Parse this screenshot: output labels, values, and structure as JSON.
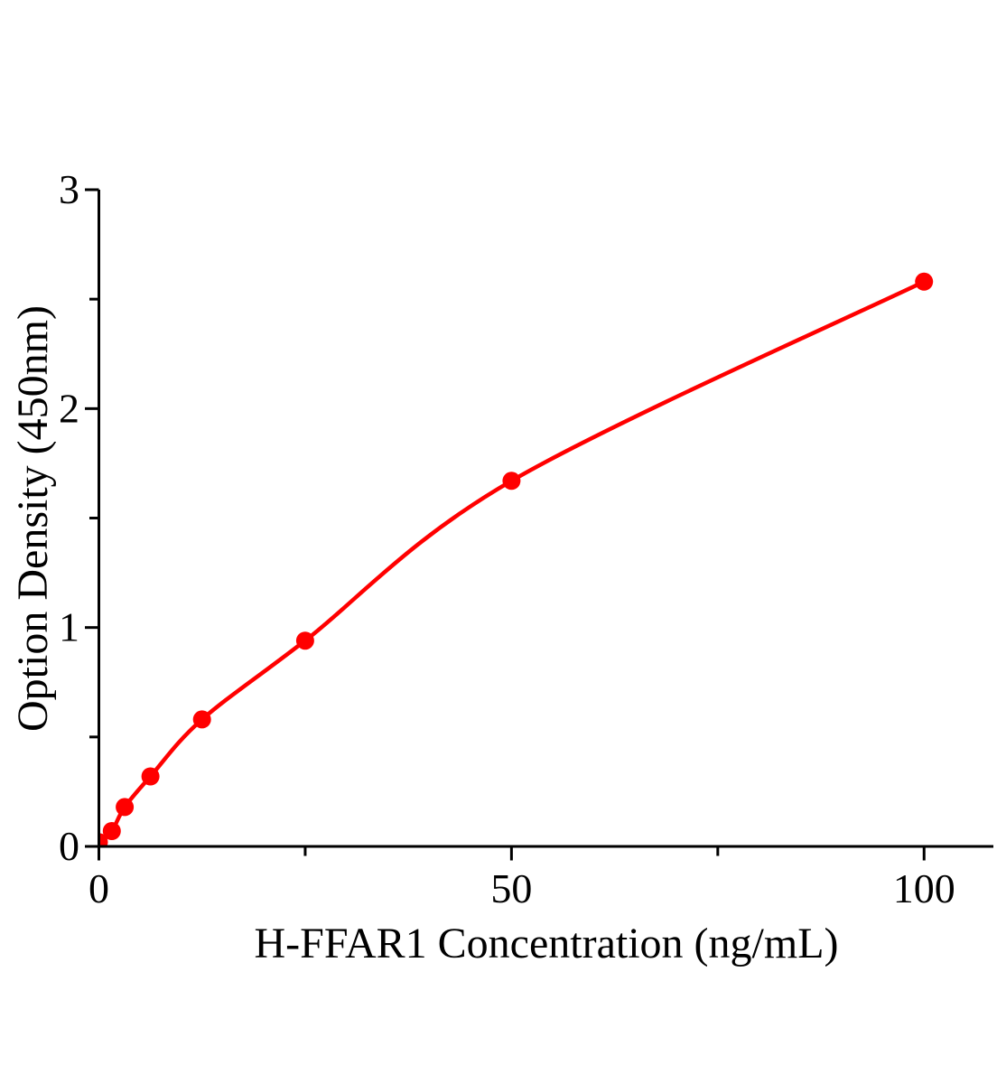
{
  "chart_data": {
    "type": "scatter",
    "title": "",
    "xlabel": "H-FFAR1 Concentration (ng/mL)",
    "ylabel": "Option Density (450nm)",
    "x": [
      0,
      1.563,
      3.125,
      6.25,
      12.5,
      25,
      50,
      100
    ],
    "y": [
      0.02,
      0.07,
      0.18,
      0.32,
      0.58,
      0.94,
      1.67,
      2.58
    ],
    "curve": "smooth saturating fit through points",
    "xlim": [
      0,
      108.4
    ],
    "ylim": [
      0,
      3
    ],
    "x_major_ticks": [
      0,
      50,
      100
    ],
    "x_tick_labels": [
      "0",
      "50",
      "100"
    ],
    "x_minor_ticks": [
      25,
      75
    ],
    "y_major_ticks": [
      0,
      1,
      2,
      3
    ],
    "y_tick_labels": [
      "0",
      "1",
      "2",
      "3"
    ],
    "y_minor_ticks": [
      0.5,
      1.5,
      2.5
    ],
    "legend": "none",
    "grid": "off",
    "colors": {
      "series": "#ff0000",
      "axis": "#000000",
      "background": "#ffffff"
    }
  }
}
